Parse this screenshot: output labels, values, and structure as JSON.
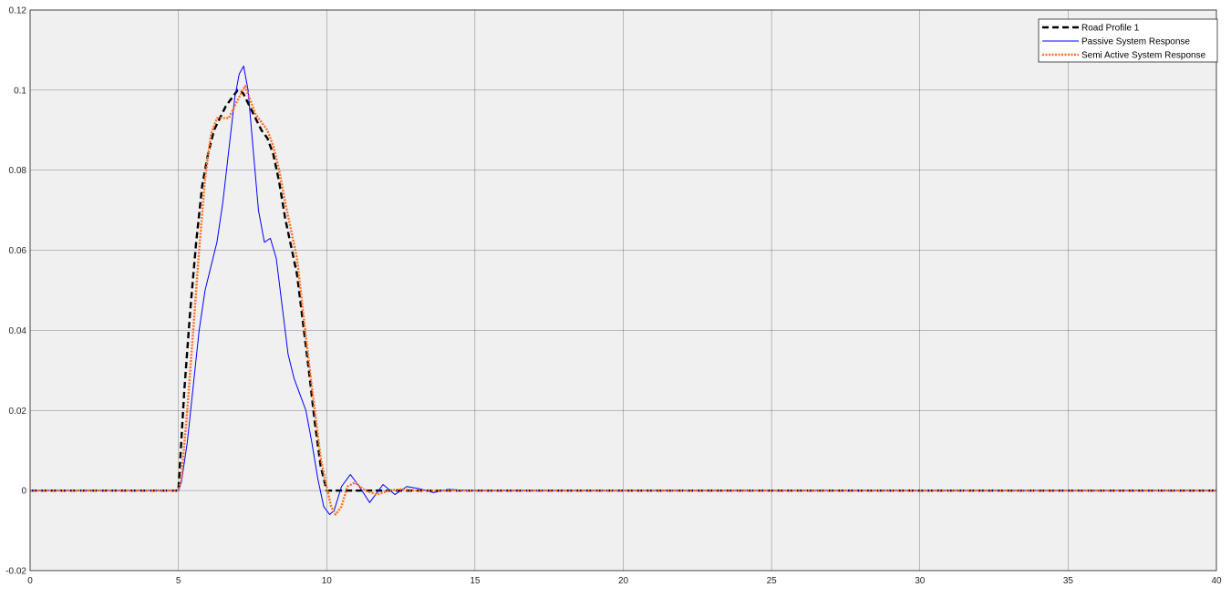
{
  "chart_data": {
    "type": "line",
    "title": "",
    "xlabel": "",
    "ylabel": "",
    "xlim": [
      0,
      40
    ],
    "ylim": [
      -0.02,
      0.12
    ],
    "xticks": [
      0,
      5,
      10,
      15,
      20,
      25,
      30,
      35,
      40
    ],
    "yticks": [
      -0.02,
      0,
      0.02,
      0.04,
      0.06,
      0.08,
      0.1,
      0.12
    ],
    "xtick_labels": [
      "0",
      "5",
      "10",
      "15",
      "20",
      "25",
      "30",
      "35",
      "40"
    ],
    "ytick_labels": [
      "-0.02",
      "0",
      "0.02",
      "0.04",
      "0.06",
      "0.08",
      "0.1",
      "0.12"
    ],
    "grid": true,
    "background": "#f0f0f0",
    "legend_position": "top-right",
    "series": [
      {
        "name": "Road Profile 1",
        "color": "#000000",
        "style": "dashed",
        "x": [
          0,
          5,
          5.2,
          5.4,
          5.6,
          5.8,
          6.0,
          6.2,
          6.4,
          6.6,
          6.8,
          7.0,
          7.1,
          7.2,
          7.4,
          7.6,
          7.8,
          8.0,
          8.2,
          8.4,
          8.6,
          8.8,
          9.0,
          9.2,
          9.4,
          9.6,
          9.8,
          10.0,
          10.2,
          40
        ],
        "y": [
          0,
          0,
          0.025,
          0.045,
          0.062,
          0.076,
          0.084,
          0.09,
          0.093,
          0.096,
          0.098,
          0.1,
          0.1,
          0.099,
          0.096,
          0.093,
          0.09,
          0.088,
          0.084,
          0.077,
          0.068,
          0.061,
          0.054,
          0.042,
          0.03,
          0.017,
          0.006,
          0,
          0,
          0
        ]
      },
      {
        "name": "Passive System Response",
        "color": "#0000ff",
        "style": "solid",
        "x": [
          0,
          5,
          5.1,
          5.3,
          5.5,
          5.7,
          5.9,
          6.1,
          6.3,
          6.5,
          6.7,
          6.9,
          7.05,
          7.2,
          7.35,
          7.5,
          7.7,
          7.9,
          8.1,
          8.3,
          8.5,
          8.7,
          8.9,
          9.1,
          9.3,
          9.5,
          9.7,
          9.9,
          10.1,
          10.25,
          10.5,
          10.8,
          11.1,
          11.45,
          11.9,
          12.3,
          12.7,
          13.1,
          13.6,
          14.1,
          14.6,
          15,
          40
        ],
        "y": [
          0,
          0,
          0.002,
          0.012,
          0.026,
          0.04,
          0.05,
          0.056,
          0.062,
          0.072,
          0.085,
          0.098,
          0.104,
          0.106,
          0.1,
          0.087,
          0.07,
          0.062,
          0.063,
          0.058,
          0.046,
          0.034,
          0.028,
          0.024,
          0.02,
          0.012,
          0.003,
          -0.004,
          -0.006,
          -0.005,
          0.001,
          0.004,
          0.001,
          -0.003,
          0.0015,
          -0.001,
          0.001,
          0.0005,
          -0.0005,
          0.0003,
          0.0001,
          0,
          0
        ]
      },
      {
        "name": "Semi Active System Response",
        "color": "#ff6e1f",
        "style": "dotted",
        "x": [
          0,
          5,
          5.1,
          5.3,
          5.5,
          5.7,
          5.9,
          6.1,
          6.3,
          6.5,
          6.7,
          6.9,
          7.1,
          7.25,
          7.4,
          7.6,
          7.8,
          8.0,
          8.2,
          8.4,
          8.6,
          8.8,
          9.0,
          9.2,
          9.4,
          9.6,
          9.8,
          10.0,
          10.15,
          10.3,
          10.5,
          10.7,
          10.95,
          11.3,
          11.7,
          12.1,
          12.5,
          13,
          40
        ],
        "y": [
          0,
          0,
          0.003,
          0.02,
          0.04,
          0.06,
          0.078,
          0.089,
          0.093,
          0.093,
          0.093,
          0.096,
          0.099,
          0.101,
          0.098,
          0.094,
          0.092,
          0.09,
          0.086,
          0.08,
          0.072,
          0.065,
          0.058,
          0.045,
          0.032,
          0.02,
          0.008,
          0.001,
          -0.004,
          -0.006,
          -0.004,
          0.001,
          0.002,
          0,
          -0.001,
          0,
          0.0003,
          0,
          0
        ]
      }
    ]
  }
}
